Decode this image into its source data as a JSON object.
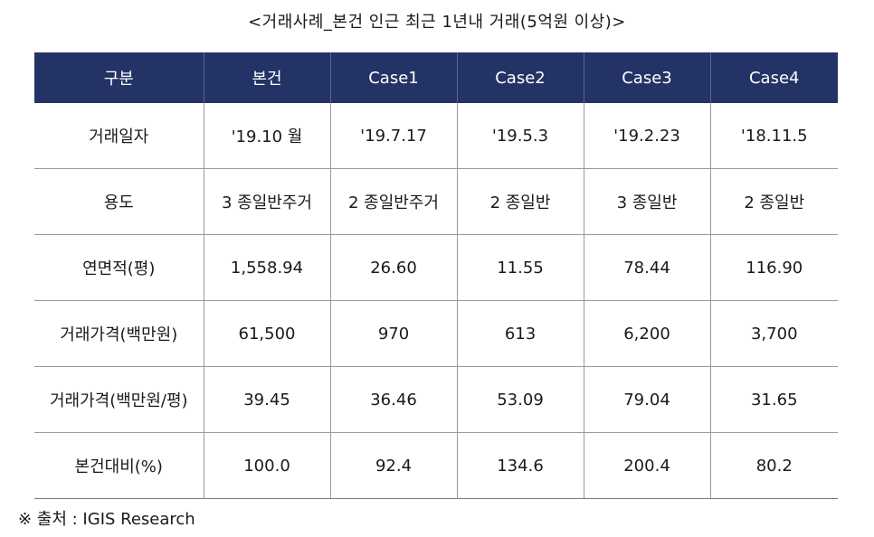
{
  "title": "<거래사례_본건 인근 최근 1년내 거래(5억원 이상)>",
  "table": {
    "headers": [
      "구분",
      "본건",
      "Case1",
      "Case2",
      "Case3",
      "Case4"
    ],
    "rows": [
      [
        "거래일자",
        "'19.10 월",
        "'19.7.17",
        "'19.5.3",
        "'19.2.23",
        "'18.11.5"
      ],
      [
        "용도",
        "3 종일반주거",
        "2 종일반주거",
        "2 종일반",
        "3 종일반",
        "2 종일반"
      ],
      [
        "연면적(평)",
        "1,558.94",
        "26.60",
        "11.55",
        "78.44",
        "116.90"
      ],
      [
        "거래가격(백만원)",
        "61,500",
        "970",
        "613",
        "6,200",
        "3,700"
      ],
      [
        "거래가격(백만원/평)",
        "39.45",
        "36.46",
        "53.09",
        "79.04",
        "31.65"
      ],
      [
        "본건대비(%)",
        "100.0",
        "92.4",
        "134.6",
        "200.4",
        "80.2"
      ]
    ]
  },
  "source": "※ 출처 : IGIS Research",
  "colors": {
    "header_bg": "#243366",
    "header_text": "#ffffff",
    "border": "#9a9a9a"
  }
}
